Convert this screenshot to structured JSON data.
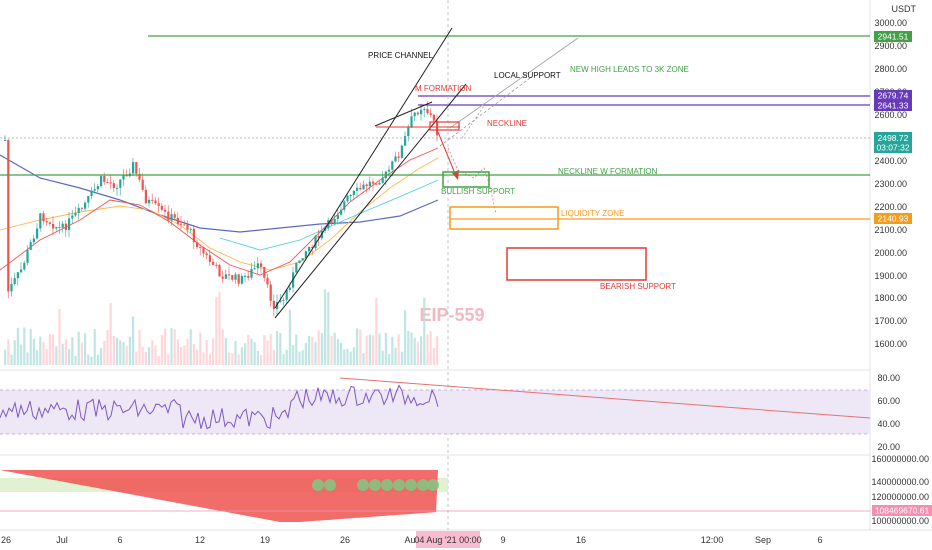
{
  "currency_label": "USDT",
  "watermark": "EIP-559",
  "colors": {
    "up": "#26a69a",
    "down": "#ef5350",
    "green_line": "#43a047",
    "purple": "#673ab7",
    "orange": "#f59c1a",
    "red_box": "#e53935",
    "rsi_band": "#7e57c2",
    "rsi_line": "#7e57c2"
  },
  "price_axis": {
    "ticks": [
      "3000.00",
      "2900.00",
      "2800.00",
      "2700.00",
      "2600.00",
      "2400.00",
      "2300.00",
      "2200.00",
      "2100.00",
      "2000.00",
      "1900.00",
      "1800.00",
      "1700.00",
      "1600.00"
    ]
  },
  "rsi_axis": {
    "ticks": [
      "80.00",
      "60.00",
      "40.00",
      "20.00"
    ]
  },
  "volume_axis": {
    "ticks": [
      "160000000.00",
      "140000000.00",
      "120000000.00",
      "100000000.00"
    ]
  },
  "x_axis": {
    "ticks": [
      "26",
      "Jul",
      "6",
      "12",
      "19",
      "26",
      "Au",
      "9",
      "16",
      "12:00",
      "Sep",
      "6"
    ],
    "cursor_label": "04 Aug '21   00:00"
  },
  "price_tags": {
    "level_2941": "2941.51",
    "level_2679": "2679.74",
    "level_2641": "2641.33",
    "current_price": "2498.72",
    "countdown": "03:07:32",
    "level_2140": "2140.93",
    "volume_value": "108469670.61"
  },
  "annotations": {
    "price_channel": "PRICE CHANNEL",
    "m_formation": "M FORMATION",
    "local_support": "LOCAL SUPPORT",
    "new_high": "NEW HIGH LEADS TO 3K ZONE",
    "neckline": "NECKLINE",
    "neckline_w": "NECKLINE W FORMATION",
    "bullish_support": "BULLISH SUPPORT",
    "liquidity_zone": "LIQUIDITY ZONE",
    "bearish_support": "BEARISH SUPPORT"
  },
  "chart_data": {
    "type": "candlestick",
    "symbol_quote": "USDT",
    "price_range": [
      1550,
      3080
    ],
    "levels": [
      2941.51,
      2679.74,
      2641.33,
      2498.72,
      2340,
      2140.93
    ],
    "rsi_range": [
      20,
      85
    ],
    "rsi_bands": [
      30,
      70
    ],
    "x_ticks": [
      "26",
      "Jul",
      "6",
      "12",
      "19",
      "26",
      "Au",
      "9",
      "16",
      "12:00",
      "Sep",
      "6"
    ],
    "notes": "Ethereum-style daily candles June-Aug 2021 rising from ~1720 to ~2680 inside an ascending price channel; RSI panel with bearish divergence trend line; cumulative volume-style histogram panel."
  }
}
